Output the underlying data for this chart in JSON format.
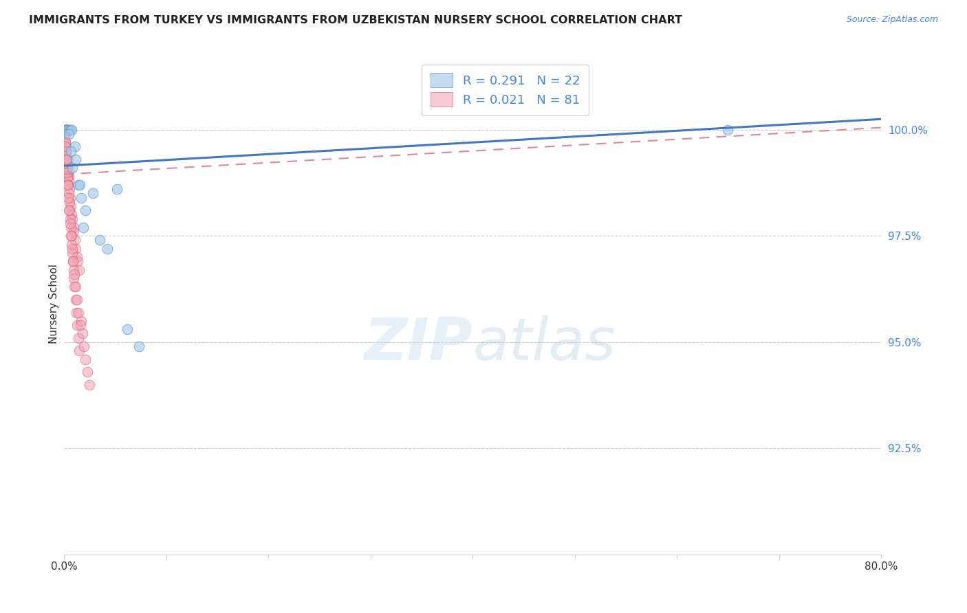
{
  "title": "IMMIGRANTS FROM TURKEY VS IMMIGRANTS FROM UZBEKISTAN NURSERY SCHOOL CORRELATION CHART",
  "source": "Source: ZipAtlas.com",
  "ylabel": "Nursery School",
  "xlim": [
    0.0,
    80.0
  ],
  "ylim": [
    90.0,
    101.8
  ],
  "R1": 0.291,
  "N1": 22,
  "R2": 0.021,
  "N2": 81,
  "color_turkey": "#a8c8e8",
  "color_turkey_edge": "#5599cc",
  "color_uzbekistan": "#f4a0b0",
  "color_uzbekistan_edge": "#cc6677",
  "color_trendline_turkey": "#4477bb",
  "color_trendline_uzbekistan": "#dd8899",
  "ytick_vals": [
    92.5,
    95.0,
    97.5,
    100.0
  ],
  "turkey_x": [
    0.25,
    0.35,
    0.55,
    0.65,
    0.75,
    1.1,
    1.4,
    1.7,
    2.1,
    2.8,
    3.5,
    4.2,
    5.2,
    6.2,
    7.3,
    1.05,
    1.55,
    0.45,
    0.68,
    1.9,
    0.82,
    65.0
  ],
  "turkey_y": [
    100.0,
    100.0,
    100.0,
    100.0,
    100.0,
    99.3,
    98.7,
    98.4,
    98.1,
    98.5,
    97.4,
    97.2,
    98.6,
    95.3,
    94.9,
    99.6,
    98.7,
    99.9,
    99.5,
    97.7,
    99.1,
    100.0
  ],
  "uzbekistan_x": [
    0.08,
    0.12,
    0.15,
    0.18,
    0.22,
    0.25,
    0.28,
    0.32,
    0.35,
    0.38,
    0.42,
    0.08,
    0.12,
    0.18,
    0.22,
    0.28,
    0.35,
    0.42,
    0.48,
    0.15,
    0.22,
    0.3,
    0.38,
    0.46,
    0.55,
    0.6,
    0.68,
    0.75,
    0.82,
    0.9,
    0.95,
    1.05,
    1.15,
    1.25,
    1.35,
    1.45,
    0.1,
    0.15,
    0.2,
    0.25,
    0.3,
    0.35,
    0.4,
    0.45,
    0.5,
    0.55,
    0.6,
    0.65,
    0.7,
    0.75,
    0.8,
    0.85,
    0.9,
    0.95,
    1.0,
    1.1,
    1.2,
    1.3,
    1.4,
    1.5,
    1.65,
    1.8,
    1.95,
    2.1,
    2.3,
    2.5,
    0.12,
    0.18,
    0.25,
    0.32,
    0.4,
    0.48,
    0.58,
    0.68,
    0.78,
    0.88,
    0.98,
    1.1,
    1.25,
    1.4,
    1.6
  ],
  "uzbekistan_y": [
    100.0,
    100.0,
    100.0,
    100.0,
    100.0,
    100.0,
    100.0,
    100.0,
    100.0,
    100.0,
    100.0,
    99.8,
    99.6,
    99.5,
    99.4,
    99.2,
    99.1,
    99.0,
    98.9,
    99.7,
    99.5,
    99.3,
    99.0,
    98.8,
    98.6,
    98.4,
    98.2,
    98.0,
    97.9,
    97.7,
    97.6,
    97.4,
    97.2,
    97.0,
    96.9,
    96.7,
    99.9,
    99.7,
    99.5,
    99.3,
    99.1,
    98.9,
    98.7,
    98.5,
    98.3,
    98.1,
    97.9,
    97.7,
    97.5,
    97.3,
    97.1,
    96.9,
    96.7,
    96.5,
    96.3,
    96.0,
    95.7,
    95.4,
    95.1,
    94.8,
    95.5,
    95.2,
    94.9,
    94.6,
    94.3,
    94.0,
    99.6,
    99.3,
    99.0,
    98.7,
    98.4,
    98.1,
    97.8,
    97.5,
    97.2,
    96.9,
    96.6,
    96.3,
    96.0,
    95.7,
    95.4
  ]
}
